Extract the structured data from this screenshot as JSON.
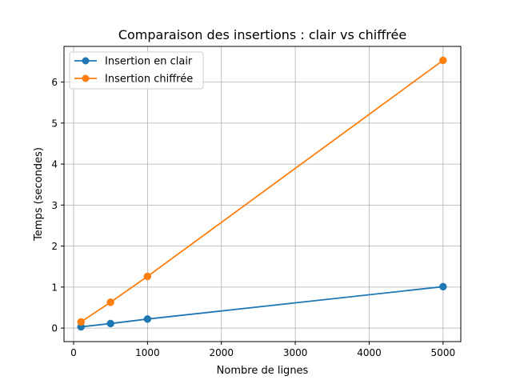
{
  "chart_data": {
    "type": "line",
    "title": "Comparaison des insertions : clair vs chiffrée",
    "xlabel": "Nombre de lignes",
    "ylabel": "Temps (secondes)",
    "xlim": [
      -130,
      5240
    ],
    "ylim": [
      -0.33,
      6.87
    ],
    "x_ticks": [
      0,
      1000,
      2000,
      3000,
      4000,
      5000
    ],
    "y_ticks": [
      0,
      1,
      2,
      3,
      4,
      5,
      6
    ],
    "grid": true,
    "legend_position": "top-left",
    "series": [
      {
        "name": "Insertion en clair",
        "color": "#1f77b4",
        "marker": "circle",
        "x": [
          100,
          500,
          1000,
          5000
        ],
        "y": [
          0.03,
          0.11,
          0.22,
          1.01
        ]
      },
      {
        "name": "Insertion chiffrée",
        "color": "#ff7f0e",
        "marker": "circle",
        "x": [
          100,
          500,
          1000,
          5000
        ],
        "y": [
          0.15,
          0.63,
          1.26,
          6.53
        ]
      }
    ]
  }
}
